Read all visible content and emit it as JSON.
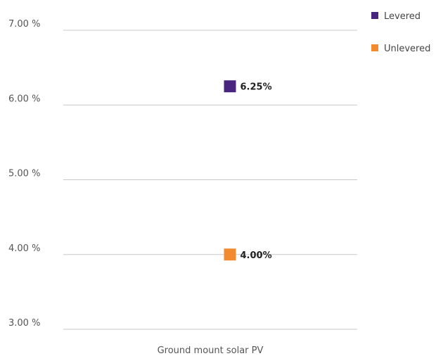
{
  "chart_data": {
    "type": "scatter",
    "title": "",
    "xlabel": "",
    "ylabel": "",
    "categories": [
      "Ground mount solar PV"
    ],
    "ylim": [
      3.0,
      7.0
    ],
    "yticks": [
      3.0,
      4.0,
      5.0,
      6.0,
      7.0
    ],
    "ytick_labels": [
      "3.00 %",
      "4.00 %",
      "5.00 %",
      "6.00 %",
      "7.00 %"
    ],
    "grid": true,
    "legend_position": "top-right",
    "series": [
      {
        "name": "Levered",
        "values": [
          6.25
        ],
        "labels": [
          "6.25%"
        ],
        "color": "#4a2580"
      },
      {
        "name": "Unlevered",
        "values": [
          4.0
        ],
        "labels": [
          "4.00%"
        ],
        "color": "#f28a30"
      }
    ]
  }
}
